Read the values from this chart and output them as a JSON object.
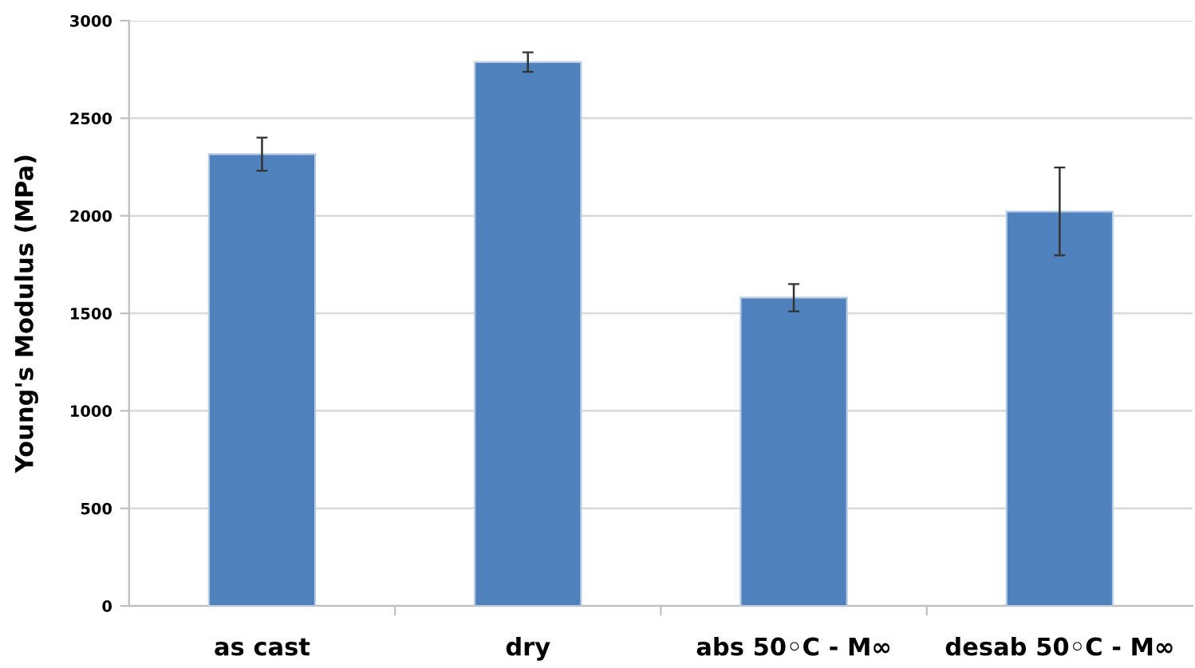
{
  "chart_data": {
    "type": "bar",
    "ylabel": "Young's Modulus (MPa)",
    "categories": [
      "as cast",
      "dry",
      "abs 50◦C - M∞",
      "desab 50◦C - M∞"
    ],
    "values": [
      2316,
      2788,
      1580,
      2022
    ],
    "errors": [
      85,
      50,
      70,
      225
    ],
    "color": "#4f81bd",
    "ylim": [
      0,
      3000
    ],
    "yticks": [
      0,
      500,
      1000,
      1500,
      2000,
      2500,
      3000
    ],
    "grid": "y"
  }
}
